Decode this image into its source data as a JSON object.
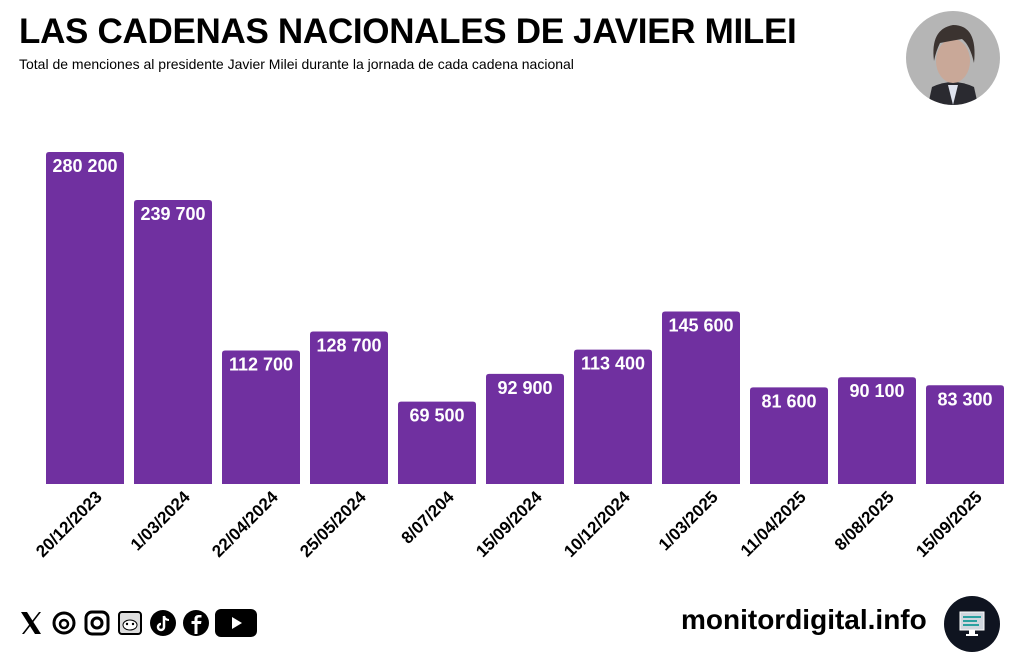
{
  "header": {
    "title": "LAS CADENAS NACIONALES DE JAVIER MILEI",
    "subtitle": "Total de menciones al presidente Javier Milei durante la jornada de cada cadena nacional"
  },
  "footer": {
    "site": "monitordigital.info",
    "social_icons": [
      "x-icon",
      "threads-icon",
      "instagram-icon",
      "reddit-icon",
      "tiktok-icon",
      "facebook-icon",
      "youtube-icon"
    ]
  },
  "colors": {
    "bar": "#7030a0",
    "label": "#ffffff"
  },
  "chart_data": {
    "type": "bar",
    "title": "LAS CADENAS NACIONALES DE JAVIER MILEI",
    "xlabel": "",
    "ylabel": "",
    "ylim": [
      0,
      280200
    ],
    "grid": false,
    "categories": [
      "20/12/2023",
      "1/03/2024",
      "22/04/2024",
      "25/05/2024",
      "8/07/204",
      "15/09/2024",
      "10/12/2024",
      "1/03/2025",
      "11/04/2025",
      "8/08/2025",
      "15/09/2025"
    ],
    "values": [
      280200,
      239700,
      112700,
      128700,
      69500,
      92900,
      113400,
      145600,
      81600,
      90100,
      83300
    ],
    "data_labels": [
      "280 200",
      "239 700",
      "112 700",
      "128 700",
      "69 500",
      "92 900",
      "113 400",
      "145 600",
      "81 600",
      "90 100",
      "83 300"
    ]
  }
}
